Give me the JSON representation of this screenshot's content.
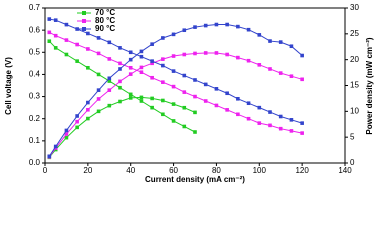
{
  "chart_data": {
    "type": "line",
    "xlabel": "Current density (mA cm⁻²)",
    "ylabel": "Cell voltage (V)",
    "y2label": "Power density (mW cm⁻²)",
    "xlim": [
      0,
      140
    ],
    "xticks": [
      0,
      20,
      40,
      60,
      80,
      100,
      120,
      140
    ],
    "ylim": [
      0,
      0.7
    ],
    "yticks": [
      {
        "value": 0,
        "label": "0.0"
      },
      0.1,
      0.2,
      0.3,
      0.4,
      0.5,
      0.6,
      0.7
    ],
    "y2lim": [
      0,
      30
    ],
    "y2ticks": [
      0,
      5,
      10,
      15,
      20,
      25,
      30
    ],
    "legend": "upper left",
    "series": [
      {
        "name": "70 °C",
        "color": "#22cc22",
        "x": [
          2,
          5,
          10,
          15,
          20,
          25,
          30,
          35,
          40,
          45,
          50,
          55,
          60,
          65,
          70
        ],
        "voltage": [
          0.55,
          0.52,
          0.49,
          0.46,
          0.43,
          0.4,
          0.37,
          0.34,
          0.31,
          0.28,
          0.25,
          0.22,
          0.19,
          0.165,
          0.14
        ],
        "power": [
          1.1,
          2.6,
          4.9,
          6.9,
          8.6,
          10.0,
          11.1,
          11.9,
          12.6,
          12.7,
          12.5,
          12.1,
          11.4,
          10.7,
          9.8
        ]
      },
      {
        "name": "80 °C",
        "color": "#ee22ee",
        "x": [
          2,
          5,
          10,
          15,
          20,
          25,
          30,
          35,
          40,
          45,
          50,
          55,
          60,
          65,
          70,
          75,
          80,
          85,
          90,
          95,
          100,
          105,
          110,
          115,
          120
        ],
        "voltage": [
          0.59,
          0.575,
          0.555,
          0.535,
          0.515,
          0.495,
          0.47,
          0.45,
          0.43,
          0.41,
          0.385,
          0.365,
          0.345,
          0.32,
          0.3,
          0.28,
          0.26,
          0.24,
          0.22,
          0.2,
          0.18,
          0.17,
          0.155,
          0.145,
          0.135
        ],
        "power": [
          1.2,
          2.9,
          5.6,
          8.0,
          10.3,
          12.4,
          14.1,
          15.8,
          17.2,
          18.5,
          19.3,
          20.1,
          20.7,
          21.0,
          21.2,
          21.3,
          21.3,
          21.0,
          20.4,
          19.8,
          19.0,
          18.2,
          17.4,
          16.8,
          16.2
        ]
      },
      {
        "name": "90 °C",
        "color": "#3344cc",
        "x": [
          2,
          5,
          10,
          15,
          20,
          25,
          30,
          35,
          40,
          45,
          50,
          55,
          60,
          65,
          70,
          75,
          80,
          85,
          90,
          95,
          100,
          105,
          110,
          115,
          120
        ],
        "voltage": [
          0.65,
          0.645,
          0.625,
          0.605,
          0.585,
          0.565,
          0.545,
          0.52,
          0.5,
          0.48,
          0.46,
          0.44,
          0.415,
          0.395,
          0.375,
          0.355,
          0.335,
          0.315,
          0.29,
          0.27,
          0.25,
          0.23,
          0.21,
          0.195,
          0.18
        ],
        "power": [
          1.3,
          3.2,
          6.3,
          9.1,
          11.7,
          14.1,
          16.4,
          18.2,
          20.0,
          21.6,
          23.0,
          24.2,
          24.9,
          25.7,
          26.3,
          26.6,
          26.8,
          26.8,
          26.4,
          25.8,
          24.8,
          23.6,
          23.4,
          22.6,
          20.8
        ]
      }
    ]
  }
}
